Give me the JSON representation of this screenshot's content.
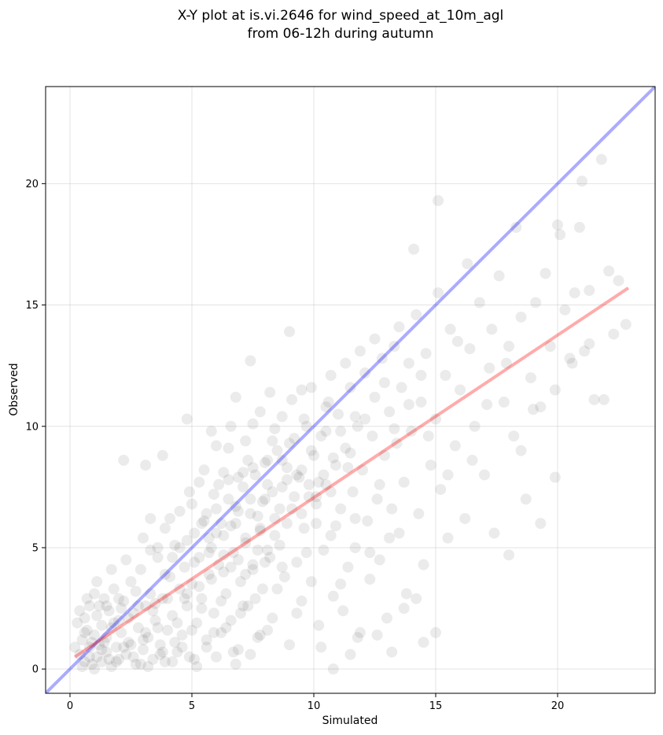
{
  "chart_data": {
    "type": "scatter",
    "title_line1": "X-Y plot at is.vi.2646 for wind_speed_at_10m_agl",
    "title_line2": "from 06-12h during autumn",
    "xlabel": "Simulated",
    "ylabel": "Observed",
    "xlim": [
      -1,
      24
    ],
    "ylim": [
      -1,
      24
    ],
    "xticks": [
      0,
      5,
      10,
      15,
      20
    ],
    "yticks": [
      0,
      5,
      10,
      15,
      20
    ],
    "grid": true,
    "point_color": "#000000",
    "point_alpha": 0.08,
    "identity_line": {
      "color": "#0000ff",
      "alpha": 0.33,
      "points": [
        [
          -1,
          -1
        ],
        [
          24,
          24
        ]
      ]
    },
    "fit_line": {
      "color": "#ff0000",
      "alpha": 0.33,
      "points": [
        [
          0.2,
          0.5
        ],
        [
          22.9,
          15.7
        ]
      ]
    },
    "points": [
      [
        0.4,
        0.6
      ],
      [
        0.5,
        1.2
      ],
      [
        0.6,
        2.1
      ],
      [
        0.6,
        0.3
      ],
      [
        0.7,
        1.6
      ],
      [
        0.8,
        0.9
      ],
      [
        0.8,
        2.6
      ],
      [
        0.9,
        0.2
      ],
      [
        1.0,
        1.4
      ],
      [
        1.0,
        3.1
      ],
      [
        1.1,
        0.5
      ],
      [
        1.1,
        2.2
      ],
      [
        1.2,
        1.0
      ],
      [
        1.3,
        0.3
      ],
      [
        1.3,
        1.8
      ],
      [
        1.4,
        2.9
      ],
      [
        1.5,
        0.7
      ],
      [
        1.5,
        1.3
      ],
      [
        1.6,
        2.4
      ],
      [
        1.7,
        0.1
      ],
      [
        1.7,
        1.7
      ],
      [
        1.8,
        3.3
      ],
      [
        1.9,
        0.9
      ],
      [
        2.0,
        2.0
      ],
      [
        2.0,
        0.4
      ],
      [
        2.1,
        1.5
      ],
      [
        2.2,
        2.8
      ],
      [
        2.3,
        0.6
      ],
      [
        2.4,
        1.1
      ],
      [
        2.5,
        3.6
      ],
      [
        2.6,
        2.3
      ],
      [
        2.7,
        0.2
      ],
      [
        2.8,
        1.7
      ],
      [
        2.9,
        4.1
      ],
      [
        3.0,
        0.8
      ],
      [
        3.1,
        2.6
      ],
      [
        3.2,
        1.3
      ],
      [
        3.3,
        3.1
      ],
      [
        3.4,
        0.4
      ],
      [
        3.5,
        2.0
      ],
      [
        3.6,
        4.6
      ],
      [
        3.7,
        1.0
      ],
      [
        3.8,
        2.9
      ],
      [
        3.9,
        0.3
      ],
      [
        4.0,
        1.6
      ],
      [
        4.1,
        3.8
      ],
      [
        4.2,
        2.2
      ],
      [
        4.3,
        5.1
      ],
      [
        4.4,
        0.7
      ],
      [
        4.5,
        3.3
      ],
      [
        4.6,
        1.4
      ],
      [
        4.7,
        4.2
      ],
      [
        4.8,
        2.6
      ],
      [
        4.9,
        0.5
      ],
      [
        5.0,
        3.5
      ],
      [
        5.1,
        5.6
      ],
      [
        5.2,
        1.9
      ],
      [
        5.3,
        4.6
      ],
      [
        5.4,
        2.9
      ],
      [
        5.5,
        6.1
      ],
      [
        5.6,
        0.9
      ],
      [
        5.7,
        3.9
      ],
      [
        5.8,
        5.0
      ],
      [
        5.9,
        2.3
      ],
      [
        6.0,
        6.6
      ],
      [
        6.1,
        4.3
      ],
      [
        6.2,
        1.5
      ],
      [
        6.3,
        5.5
      ],
      [
        6.4,
        3.1
      ],
      [
        6.5,
        7.0
      ],
      [
        6.6,
        2.0
      ],
      [
        6.7,
        4.8
      ],
      [
        6.8,
        6.0
      ],
      [
        6.9,
        0.8
      ],
      [
        7.0,
        3.6
      ],
      [
        7.1,
        7.5
      ],
      [
        7.2,
        5.2
      ],
      [
        7.3,
        2.6
      ],
      [
        7.4,
        6.4
      ],
      [
        7.5,
        4.1
      ],
      [
        7.6,
        8.0
      ],
      [
        7.7,
        1.3
      ],
      [
        7.8,
        5.7
      ],
      [
        7.9,
        3.3
      ],
      [
        8.0,
        7.0
      ],
      [
        8.1,
        8.6
      ],
      [
        8.2,
        4.6
      ],
      [
        8.3,
        2.1
      ],
      [
        8.4,
        6.2
      ],
      [
        8.5,
        9.0
      ],
      [
        8.6,
        5.1
      ],
      [
        8.7,
        7.5
      ],
      [
        8.8,
        3.8
      ],
      [
        8.9,
        8.3
      ],
      [
        9.0,
        1.0
      ],
      [
        9.1,
        6.6
      ],
      [
        9.2,
        9.5
      ],
      [
        9.3,
        4.4
      ],
      [
        9.4,
        7.9
      ],
      [
        9.5,
        2.8
      ],
      [
        9.6,
        5.8
      ],
      [
        9.7,
        10.0
      ],
      [
        9.8,
        7.1
      ],
      [
        9.9,
        3.6
      ],
      [
        10.0,
        8.8
      ],
      [
        10.1,
        6.0
      ],
      [
        10.2,
        1.8
      ],
      [
        10.3,
        9.6
      ],
      [
        10.4,
        4.9
      ],
      [
        10.5,
        7.6
      ],
      [
        10.6,
        11.0
      ],
      [
        10.7,
        5.5
      ],
      [
        10.8,
        3.0
      ],
      [
        10.9,
        8.4
      ],
      [
        11.0,
        10.5
      ],
      [
        11.1,
        6.6
      ],
      [
        11.2,
        2.4
      ],
      [
        11.3,
        9.1
      ],
      [
        11.4,
        4.2
      ],
      [
        11.5,
        11.6
      ],
      [
        11.6,
        7.3
      ],
      [
        11.7,
        5.0
      ],
      [
        11.8,
        10.0
      ],
      [
        11.9,
        1.5
      ],
      [
        12.0,
        8.2
      ],
      [
        12.1,
        12.2
      ],
      [
        12.2,
        6.1
      ],
      [
        12.3,
        3.7
      ],
      [
        12.4,
        9.6
      ],
      [
        12.5,
        11.2
      ],
      [
        12.6,
        7.0
      ],
      [
        12.7,
        4.5
      ],
      [
        12.8,
        12.8
      ],
      [
        12.9,
        8.8
      ],
      [
        13.0,
        2.1
      ],
      [
        13.1,
        10.6
      ],
      [
        13.2,
        6.6
      ],
      [
        13.3,
        13.3
      ],
      [
        13.4,
        9.3
      ],
      [
        13.5,
        5.6
      ],
      [
        13.6,
        11.6
      ],
      [
        13.7,
        7.7
      ],
      [
        13.8,
        3.1
      ],
      [
        13.9,
        12.6
      ],
      [
        14.0,
        9.8
      ],
      [
        14.2,
        14.6
      ],
      [
        14.3,
        6.4
      ],
      [
        14.4,
        11.0
      ],
      [
        14.5,
        4.3
      ],
      [
        14.6,
        13.0
      ],
      [
        14.8,
        8.4
      ],
      [
        15.0,
        10.3
      ],
      [
        15.1,
        19.3
      ],
      [
        15.2,
        7.4
      ],
      [
        15.4,
        12.1
      ],
      [
        15.5,
        5.4
      ],
      [
        15.6,
        14.0
      ],
      [
        15.8,
        9.2
      ],
      [
        16.0,
        11.5
      ],
      [
        16.2,
        6.2
      ],
      [
        16.4,
        13.2
      ],
      [
        16.6,
        10.0
      ],
      [
        16.8,
        15.1
      ],
      [
        17.0,
        8.0
      ],
      [
        17.2,
        12.4
      ],
      [
        17.4,
        5.6
      ],
      [
        17.6,
        16.2
      ],
      [
        17.8,
        11.0
      ],
      [
        18.0,
        13.3
      ],
      [
        18.2,
        9.6
      ],
      [
        18.3,
        18.2
      ],
      [
        18.5,
        14.5
      ],
      [
        18.7,
        7.0
      ],
      [
        18.9,
        12.0
      ],
      [
        19.1,
        15.1
      ],
      [
        19.3,
        10.8
      ],
      [
        19.5,
        16.3
      ],
      [
        19.7,
        13.3
      ],
      [
        19.9,
        11.5
      ],
      [
        20.1,
        17.9
      ],
      [
        20.3,
        14.8
      ],
      [
        20.5,
        12.8
      ],
      [
        20.7,
        15.5
      ],
      [
        20.9,
        18.2
      ],
      [
        21.0,
        20.1
      ],
      [
        21.1,
        13.1
      ],
      [
        21.3,
        15.6
      ],
      [
        21.5,
        11.1
      ],
      [
        21.8,
        21.0
      ],
      [
        22.1,
        16.4
      ],
      [
        22.3,
        13.8
      ],
      [
        22.5,
        16.0
      ],
      [
        22.8,
        14.2
      ],
      [
        16.3,
        16.7
      ],
      [
        17.3,
        14.0
      ],
      [
        19.3,
        6.0
      ],
      [
        18.0,
        4.7
      ],
      [
        21.3,
        13.4
      ],
      [
        11.5,
        0.6
      ],
      [
        15.0,
        1.5
      ],
      [
        0.3,
        1.9
      ],
      [
        0.5,
        0.1
      ],
      [
        0.7,
        2.9
      ],
      [
        0.9,
        1.1
      ],
      [
        1.1,
        3.6
      ],
      [
        1.3,
        0.8
      ],
      [
        1.5,
        2.6
      ],
      [
        1.7,
        4.1
      ],
      [
        1.9,
        0.3
      ],
      [
        2.1,
        2.5
      ],
      [
        2.3,
        4.5
      ],
      [
        2.5,
        1.0
      ],
      [
        2.7,
        3.2
      ],
      [
        2.9,
        0.2
      ],
      [
        3.1,
        1.5
      ],
      [
        3.3,
        4.9
      ],
      [
        3.5,
        2.7
      ],
      [
        3.7,
        0.6
      ],
      [
        3.9,
        3.9
      ],
      [
        4.1,
        6.2
      ],
      [
        4.3,
        1.1
      ],
      [
        4.5,
        5.0
      ],
      [
        4.7,
        2.9
      ],
      [
        4.9,
        7.3
      ],
      [
        5.1,
        0.4
      ],
      [
        5.3,
        3.4
      ],
      [
        5.5,
        8.2
      ],
      [
        5.7,
        5.4
      ],
      [
        5.9,
        1.5
      ],
      [
        6.1,
        7.6
      ],
      [
        6.3,
        4.0
      ],
      [
        6.5,
        9.1
      ],
      [
        6.7,
        0.7
      ],
      [
        6.9,
        6.5
      ],
      [
        7.1,
        2.6
      ],
      [
        7.3,
        8.6
      ],
      [
        7.5,
        10.1
      ],
      [
        7.7,
        4.9
      ],
      [
        7.9,
        6.9
      ],
      [
        8.1,
        1.6
      ],
      [
        8.3,
        9.4
      ],
      [
        8.5,
        3.3
      ],
      [
        8.7,
        10.4
      ],
      [
        8.9,
        6.0
      ],
      [
        9.1,
        11.1
      ],
      [
        9.3,
        2.3
      ],
      [
        9.5,
        8.2
      ],
      [
        9.7,
        4.8
      ],
      [
        9.9,
        11.6
      ],
      [
        10.1,
        7.1
      ],
      [
        10.3,
        0.9
      ],
      [
        10.5,
        9.8
      ],
      [
        10.7,
        12.1
      ],
      [
        10.9,
        5.9
      ],
      [
        11.1,
        3.5
      ],
      [
        11.3,
        12.6
      ],
      [
        11.5,
        8.9
      ],
      [
        11.7,
        6.2
      ],
      [
        11.9,
        13.1
      ],
      [
        12.1,
        10.3
      ],
      [
        12.3,
        4.8
      ],
      [
        12.5,
        13.6
      ],
      [
        12.7,
        7.6
      ],
      [
        12.9,
        11.8
      ],
      [
        13.1,
        5.4
      ],
      [
        13.3,
        9.9
      ],
      [
        13.5,
        14.1
      ],
      [
        13.7,
        2.5
      ],
      [
        13.9,
        10.9
      ],
      [
        14.1,
        17.3
      ],
      [
        14.4,
        12.1
      ],
      [
        14.7,
        9.6
      ],
      [
        15.1,
        15.5
      ],
      [
        15.5,
        8.0
      ],
      [
        15.9,
        13.5
      ],
      [
        16.5,
        8.6
      ],
      [
        17.1,
        10.9
      ],
      [
        17.9,
        12.6
      ],
      [
        18.5,
        9.0
      ],
      [
        19.0,
        10.7
      ],
      [
        19.9,
        7.9
      ],
      [
        20.6,
        12.6
      ],
      [
        21.9,
        11.1
      ],
      [
        20.0,
        18.3
      ],
      [
        11.8,
        1.3
      ],
      [
        12.6,
        1.4
      ],
      [
        13.2,
        0.7
      ],
      [
        14.2,
        2.9
      ],
      [
        14.5,
        1.1
      ],
      [
        10.8,
        0.0
      ],
      [
        2.2,
        8.6
      ],
      [
        3.1,
        8.4
      ],
      [
        3.8,
        8.8
      ],
      [
        4.8,
        10.3
      ],
      [
        5.8,
        9.8
      ],
      [
        6.8,
        11.2
      ],
      [
        7.4,
        12.7
      ],
      [
        8.2,
        11.4
      ],
      [
        9.0,
        13.9
      ],
      [
        9.5,
        11.5
      ],
      [
        0.2,
        0.9
      ],
      [
        0.4,
        2.4
      ],
      [
        0.6,
        1.5
      ],
      [
        0.8,
        0.5
      ],
      [
        1.0,
        0.0
      ],
      [
        1.2,
        2.6
      ],
      [
        1.4,
        1.1
      ],
      [
        1.6,
        0.4
      ],
      [
        1.8,
        1.9
      ],
      [
        2.0,
        2.9
      ],
      [
        2.2,
        0.9
      ],
      [
        2.4,
        2.1
      ],
      [
        2.6,
        0.5
      ],
      [
        2.8,
        2.6
      ],
      [
        3.0,
        1.2
      ],
      [
        3.2,
        0.1
      ],
      [
        3.4,
        2.4
      ],
      [
        3.6,
        1.7
      ],
      [
        3.8,
        0.7
      ],
      [
        4.0,
        2.9
      ],
      [
        4.2,
        0.3
      ],
      [
        4.4,
        1.9
      ],
      [
        4.6,
        0.9
      ],
      [
        4.8,
        3.1
      ],
      [
        5.0,
        1.6
      ],
      [
        5.2,
        0.1
      ],
      [
        5.4,
        2.5
      ],
      [
        5.6,
        1.2
      ],
      [
        5.8,
        3.7
      ],
      [
        6.0,
        0.5
      ],
      [
        6.2,
        2.8
      ],
      [
        6.4,
        1.7
      ],
      [
        6.6,
        4.2
      ],
      [
        6.8,
        0.2
      ],
      [
        7.0,
        2.3
      ],
      [
        7.2,
        3.9
      ],
      [
        7.4,
        0.6
      ],
      [
        7.6,
        2.9
      ],
      [
        7.8,
        1.4
      ],
      [
        8.0,
        4.4
      ],
      [
        6.0,
        9.2
      ],
      [
        6.3,
        8.1
      ],
      [
        6.6,
        10.0
      ],
      [
        6.9,
        7.9
      ],
      [
        7.2,
        9.4
      ],
      [
        7.5,
        8.3
      ],
      [
        7.8,
        10.6
      ],
      [
        8.1,
        7.6
      ],
      [
        8.4,
        9.9
      ],
      [
        8.7,
        8.6
      ],
      [
        9.0,
        9.3
      ],
      [
        9.3,
        8.0
      ],
      [
        9.6,
        10.3
      ],
      [
        9.9,
        9.0
      ],
      [
        10.2,
        7.7
      ],
      [
        10.5,
        10.8
      ],
      [
        10.8,
        8.7
      ],
      [
        11.1,
        9.8
      ],
      [
        11.4,
        8.3
      ],
      [
        11.7,
        10.4
      ],
      [
        5.0,
        6.8
      ],
      [
        5.3,
        7.7
      ],
      [
        5.6,
        6.4
      ],
      [
        5.9,
        7.2
      ],
      [
        6.2,
        6.0
      ],
      [
        6.5,
        7.8
      ],
      [
        6.8,
        6.7
      ],
      [
        7.1,
        8.1
      ],
      [
        7.4,
        7.0
      ],
      [
        7.7,
        6.3
      ],
      [
        8.0,
        8.5
      ],
      [
        8.3,
        7.3
      ],
      [
        8.6,
        6.6
      ],
      [
        8.9,
        7.8
      ],
      [
        9.2,
        7.1
      ],
      [
        9.5,
        6.4
      ],
      [
        9.8,
        7.6
      ],
      [
        10.1,
        6.8
      ],
      [
        10.4,
        8.0
      ],
      [
        10.7,
        7.3
      ],
      [
        3.0,
        5.4
      ],
      [
        3.3,
        6.2
      ],
      [
        3.6,
        5.0
      ],
      [
        3.9,
        5.8
      ],
      [
        4.2,
        4.6
      ],
      [
        4.5,
        6.5
      ],
      [
        4.8,
        5.3
      ],
      [
        5.1,
        4.4
      ],
      [
        5.4,
        6.0
      ],
      [
        5.7,
        4.8
      ],
      [
        6.0,
        5.6
      ],
      [
        6.3,
        4.7
      ],
      [
        6.6,
        5.9
      ],
      [
        6.9,
        4.5
      ],
      [
        7.2,
        5.4
      ],
      [
        7.5,
        4.3
      ],
      [
        7.8,
        5.8
      ],
      [
        8.1,
        4.9
      ],
      [
        8.4,
        5.5
      ],
      [
        8.7,
        4.2
      ]
    ]
  }
}
